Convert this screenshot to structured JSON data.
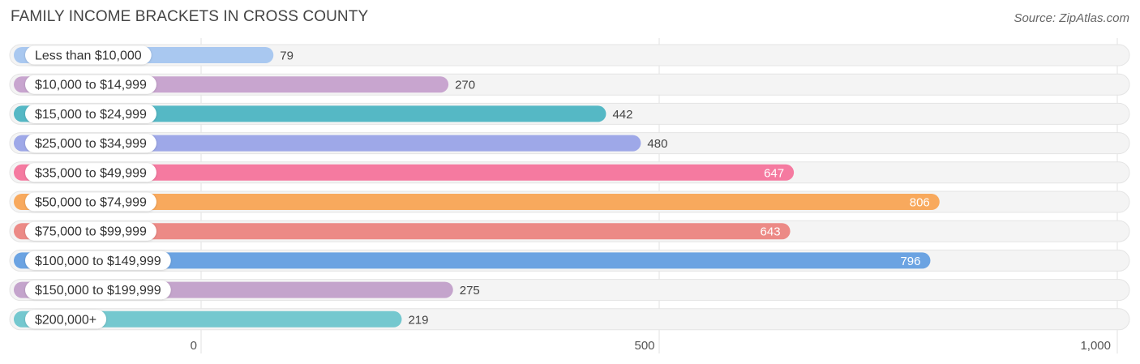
{
  "title": "FAMILY INCOME BRACKETS IN CROSS COUNTY",
  "source": "Source: ZipAtlas.com",
  "chart_data": {
    "type": "bar",
    "orientation": "horizontal",
    "title": "FAMILY INCOME BRACKETS IN CROSS COUNTY",
    "categories": [
      "Less than $10,000",
      "$10,000 to $14,999",
      "$15,000 to $24,999",
      "$25,000 to $34,999",
      "$35,000 to $49,999",
      "$50,000 to $74,999",
      "$75,000 to $99,999",
      "$100,000 to $149,999",
      "$150,000 to $199,999",
      "$200,000+"
    ],
    "values": [
      79,
      270,
      442,
      480,
      647,
      806,
      643,
      796,
      275,
      219
    ],
    "value_labels": [
      "79",
      "270",
      "442",
      "480",
      "647",
      "806",
      "643",
      "796",
      "275",
      "219"
    ],
    "colors": [
      "#a9c8f0",
      "#c8a5cf",
      "#55b8c5",
      "#9ea8e8",
      "#f57aa0",
      "#f8a95d",
      "#ec8a86",
      "#6ba3e2",
      "#c4a4cc",
      "#74c8cf"
    ],
    "xlim": [
      0,
      1000
    ],
    "ticks": [
      0,
      500,
      1000
    ],
    "tick_labels": [
      "0",
      "500",
      "1,000"
    ],
    "grid": true,
    "legend": "none"
  }
}
